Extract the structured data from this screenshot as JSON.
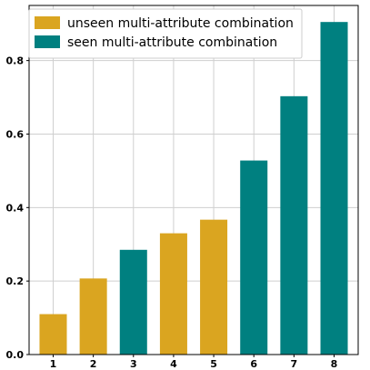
{
  "chart_data": {
    "type": "bar",
    "categories": [
      "1",
      "2",
      "3",
      "4",
      "5",
      "6",
      "7",
      "8"
    ],
    "values": [
      0.11,
      0.207,
      0.285,
      0.33,
      0.367,
      0.528,
      0.703,
      0.905
    ],
    "bar_group": [
      "unseen",
      "unseen",
      "seen",
      "unseen",
      "unseen",
      "seen",
      "seen",
      "seen"
    ],
    "series": [
      {
        "key": "unseen",
        "name": "unseen multi-attribute combination",
        "color": "#DAA520"
      },
      {
        "key": "seen",
        "name": "seen multi-attribute combination",
        "color": "#008080"
      }
    ],
    "y_ticks": [
      0.0,
      0.2,
      0.4,
      0.6,
      0.8
    ],
    "y_tick_labels": [
      "0.0",
      "0.2",
      "0.4",
      "0.6",
      "0.8"
    ],
    "ylim": [
      0,
      0.95
    ],
    "grid": true,
    "legend_position": "top-left",
    "title": "",
    "xlabel": "",
    "ylabel": ""
  }
}
